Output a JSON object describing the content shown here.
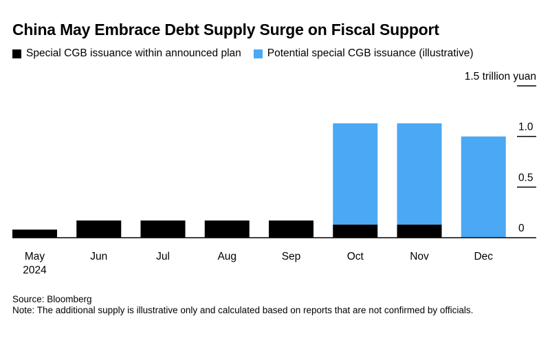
{
  "title": "China May Embrace Debt Supply Surge on Fiscal Support",
  "legend": [
    {
      "label": "Special CGB issuance within announced plan",
      "color": "#000000"
    },
    {
      "label": "Potential special CGB issuance (illustrative)",
      "color": "#4aa8f5"
    }
  ],
  "source": "Source: Bloomberg",
  "note": "Note: The additional supply is illustrative only and calculated based on reports that are not confirmed by officials.",
  "chart_data": {
    "type": "bar",
    "stacked": true,
    "categories": [
      "May",
      "Jun",
      "Jul",
      "Aug",
      "Sep",
      "Oct",
      "Nov",
      "Dec"
    ],
    "category_sublabels": [
      "2024",
      "",
      "",
      "",
      "",
      "",
      "",
      ""
    ],
    "series": [
      {
        "name": "Special CGB issuance within announced plan",
        "color": "#000000",
        "values": [
          0.08,
          0.17,
          0.17,
          0.17,
          0.17,
          0.13,
          0.13,
          0
        ]
      },
      {
        "name": "Potential special CGB issuance (illustrative)",
        "color": "#4aa8f5",
        "values": [
          0,
          0,
          0,
          0,
          0,
          1.0,
          1.0,
          1.0
        ]
      }
    ],
    "y_ticks": [
      {
        "value": 0,
        "label": "0"
      },
      {
        "value": 0.5,
        "label": "0.5"
      },
      {
        "value": 1.0,
        "label": "1.0"
      },
      {
        "value": 1.5,
        "label": "1.5 trillion yuan"
      }
    ],
    "ylim": [
      0,
      1.5
    ],
    "y_axis_side": "right",
    "grid": false,
    "legend_position": "top-left"
  }
}
